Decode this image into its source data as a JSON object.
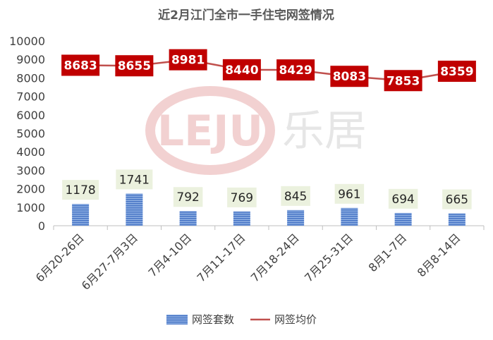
{
  "chart_data": {
    "type": "bar",
    "title": "近2月江门全市一手住宅网签情况",
    "categories": [
      "6月20-26日",
      "6月27-7月3日",
      "7月4-10日",
      "7月11-17日",
      "7月18-24日",
      "7月25-31日",
      "8月1-7日",
      "8月8-14日"
    ],
    "series": [
      {
        "name": "网签套数",
        "type": "bar",
        "values": [
          1178,
          1741,
          792,
          769,
          845,
          961,
          694,
          665
        ],
        "color": "#4472c4"
      },
      {
        "name": "网签均价",
        "type": "line",
        "values": [
          8683,
          8655,
          8981,
          8440,
          8429,
          8083,
          7853,
          8359
        ],
        "color": "#c00000"
      }
    ],
    "ylim": [
      0,
      10000
    ],
    "yticks": [
      "0",
      "1000",
      "2000",
      "3000",
      "4000",
      "5000",
      "6000",
      "7000",
      "8000",
      "9000",
      "10000"
    ],
    "grid": false,
    "legend": "bottom",
    "xlabel": "",
    "ylabel": ""
  },
  "watermark": {
    "logo_text": "LEJU",
    "brand_text": "乐居"
  },
  "colors": {
    "bar": "#4472c4",
    "line": "#c00000",
    "bar_label_bg": "#ebf1de",
    "line_label_bg": "#c00000",
    "watermark": "#e8a0a0"
  }
}
